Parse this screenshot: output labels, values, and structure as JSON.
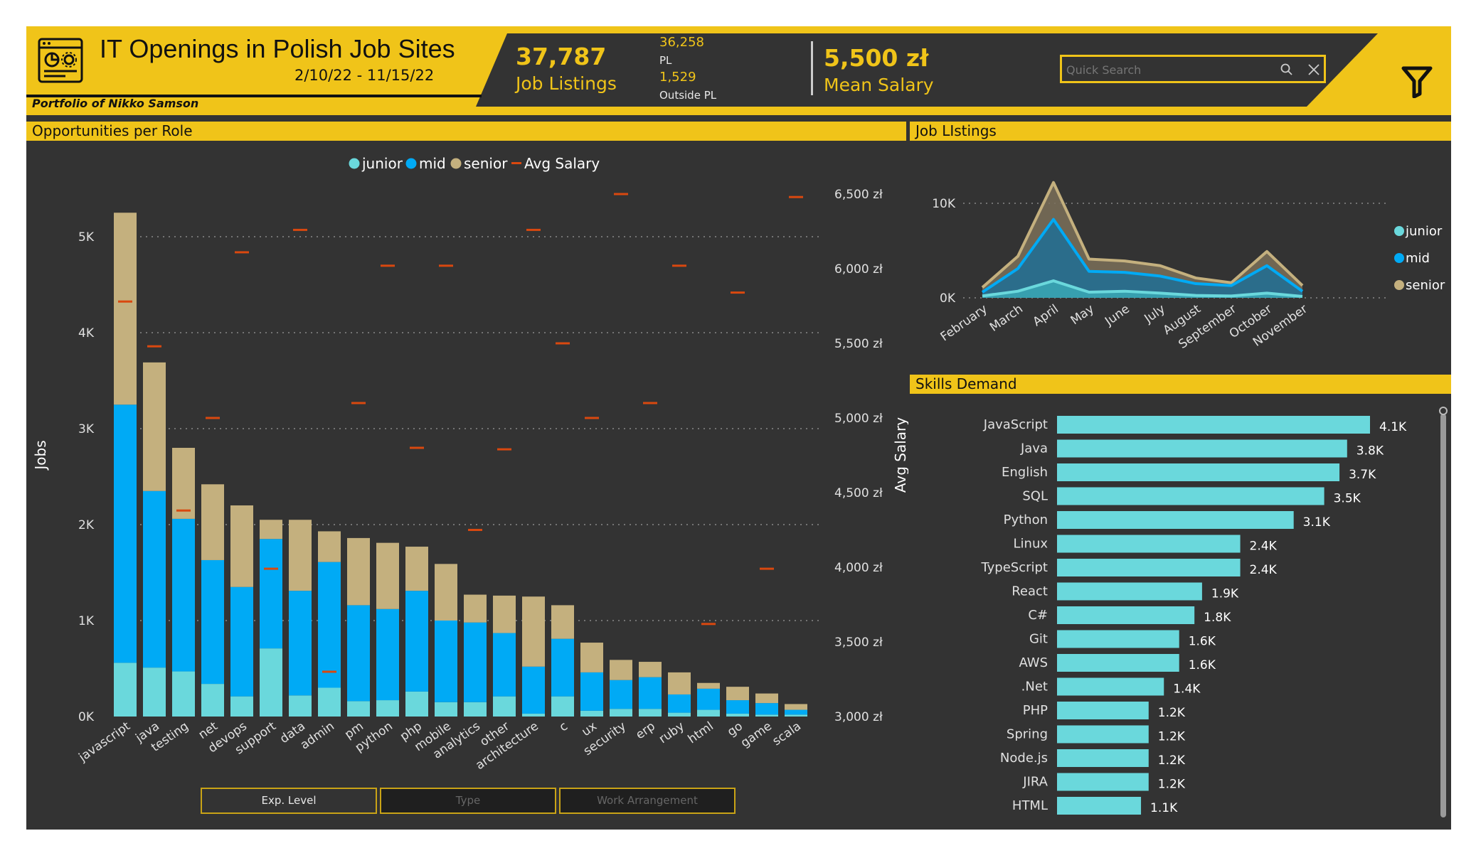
{
  "header": {
    "title": "IT Openings in Polish Job Sites",
    "date_range": "2/10/22 - 11/15/22",
    "portfolio": "Portfolio of Nikko Samson",
    "job_listings_value": "37,787",
    "job_listings_label": "Job Listings",
    "pl_value": "36,258",
    "pl_label": "PL",
    "outside_value": "1,529",
    "outside_label": "Outside PL",
    "mean_salary_value": "5,500 zł",
    "mean_salary_label": "Mean Salary",
    "search_placeholder": "Quick Search"
  },
  "colors": {
    "yellow": "#f0c419",
    "junior": "#6ad8dc",
    "mid": "#00aaf5",
    "senior": "#c4b07e",
    "avg_salary": "#d9480f",
    "panel": "#333333"
  },
  "sections": {
    "opportunities": "Opportunities per Role",
    "listings": "Job LIstings",
    "skills": "Skills Demand"
  },
  "buttons": {
    "exp_level": "Exp. Level",
    "type": "Type",
    "work": "Work Arrangement"
  },
  "chart_data": [
    {
      "type": "bar",
      "stacked": true,
      "title": "Opportunities per Role",
      "xlabel": "",
      "ylabel": "Jobs",
      "y2label": "Avg Salary",
      "ylim": [
        0,
        5500
      ],
      "y2lim": [
        3000,
        6500
      ],
      "y_ticks": [
        "0K",
        "1K",
        "2K",
        "3K",
        "4K",
        "5K"
      ],
      "y2_ticks": [
        "3,000 zł",
        "3,500 zł",
        "4,000 zł",
        "4,500 zł",
        "5,000 zł",
        "5,500 zł",
        "6,000 zł",
        "6,500 zł"
      ],
      "legend": [
        "junior",
        "mid",
        "senior",
        "Avg Salary"
      ],
      "legend_position": "top",
      "categories": [
        "javascript",
        "java",
        "testing",
        "net",
        "devops",
        "support",
        "data",
        "admin",
        "pm",
        "python",
        "php",
        "mobile",
        "analytics",
        "other",
        "architecture",
        "c",
        "ux",
        "security",
        "erp",
        "ruby",
        "html",
        "go",
        "game",
        "scala"
      ],
      "series": [
        {
          "name": "junior",
          "values": [
            560,
            510,
            470,
            340,
            210,
            710,
            220,
            300,
            160,
            170,
            260,
            150,
            150,
            210,
            30,
            210,
            60,
            80,
            80,
            40,
            70,
            30,
            20,
            20
          ]
        },
        {
          "name": "mid",
          "values": [
            2690,
            1840,
            1590,
            1290,
            1140,
            1140,
            1090,
            1310,
            1000,
            950,
            1050,
            850,
            830,
            660,
            490,
            600,
            400,
            300,
            330,
            190,
            220,
            140,
            120,
            50
          ]
        },
        {
          "name": "senior",
          "values": [
            2000,
            1340,
            740,
            790,
            850,
            200,
            740,
            320,
            700,
            690,
            460,
            590,
            290,
            390,
            730,
            350,
            310,
            210,
            160,
            230,
            60,
            140,
            100,
            60
          ]
        },
        {
          "name": "Avg Salary",
          "values": [
            5780,
            5480,
            4380,
            5000,
            6110,
            3990,
            6260,
            3300,
            5100,
            6020,
            4800,
            6020,
            4250,
            4790,
            6260,
            5500,
            5000,
            6500,
            5100,
            6020,
            3620,
            5840,
            3990,
            6480
          ]
        }
      ]
    },
    {
      "type": "area",
      "title": "Job LIstings",
      "y_ticks": [
        "0K",
        "10K"
      ],
      "ylim": [
        0,
        12000
      ],
      "legend": [
        "junior",
        "mid",
        "senior"
      ],
      "legend_position": "right",
      "categories": [
        "February",
        "March",
        "April",
        "May",
        "June",
        "July",
        "August",
        "September",
        "October",
        "November"
      ],
      "series": [
        {
          "name": "junior",
          "values": [
            200,
            700,
            1800,
            600,
            700,
            500,
            250,
            200,
            500,
            150
          ]
        },
        {
          "name": "mid",
          "values": [
            600,
            3100,
            8300,
            2800,
            2700,
            2300,
            1500,
            1300,
            3400,
            700
          ]
        },
        {
          "name": "senior",
          "values": [
            1100,
            4400,
            12200,
            4100,
            3900,
            3400,
            2100,
            1600,
            4900,
            1300
          ]
        }
      ]
    },
    {
      "type": "bar",
      "orientation": "horizontal",
      "title": "Skills Demand",
      "categories": [
        "JavaScript",
        "Java",
        "English",
        "SQL",
        "Python",
        "Linux",
        "TypeScript",
        "React",
        "C#",
        "Git",
        "AWS",
        ".Net",
        "PHP",
        "Spring",
        "Node.js",
        "JIRA",
        "HTML"
      ],
      "values": [
        4100,
        3800,
        3700,
        3500,
        3100,
        2400,
        2400,
        1900,
        1800,
        1600,
        1600,
        1400,
        1200,
        1200,
        1200,
        1200,
        1100
      ],
      "labels": [
        "4.1K",
        "3.8K",
        "3.7K",
        "3.5K",
        "3.1K",
        "2.4K",
        "2.4K",
        "1.9K",
        "1.8K",
        "1.6K",
        "1.6K",
        "1.4K",
        "1.2K",
        "1.2K",
        "1.2K",
        "1.2K",
        "1.1K"
      ]
    }
  ]
}
